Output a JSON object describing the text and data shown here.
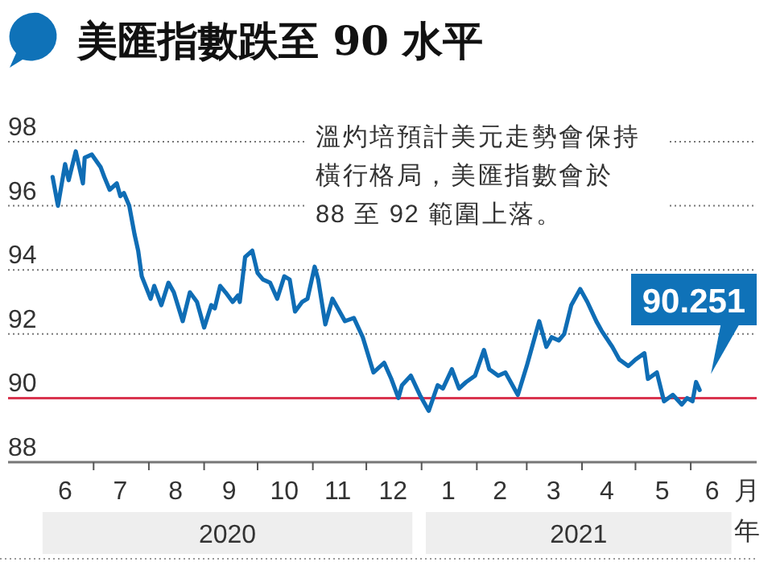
{
  "chart_data": {
    "type": "line",
    "title": "美匯指數跌至 90 水平",
    "xlabel": "月年",
    "annotations": [
      "溫灼培預計美元走勢會保持橫行格局，美匯指數會於88 至 92 範圍上落。",
      {
        "text": "90.251",
        "x": "2021-06-06",
        "y": 90.251
      },
      "2020",
      "2021"
    ],
    "x": [
      "2020-06-08",
      "2020-06-11",
      "2020-06-15",
      "2020-06-17",
      "2020-06-21",
      "2020-06-25",
      "2020-06-26",
      "2020-06-30",
      "2020-07-05",
      "2020-07-07",
      "2020-07-10",
      "2020-07-14",
      "2020-07-16",
      "2020-07-18",
      "2020-07-21",
      "2020-07-24",
      "2020-07-26",
      "2020-07-28",
      "2020-08-02",
      "2020-08-04",
      "2020-08-08",
      "2020-08-12",
      "2020-08-15",
      "2020-08-20",
      "2020-08-24",
      "2020-08-28",
      "2020-09-01",
      "2020-09-05",
      "2020-09-07",
      "2020-09-10",
      "2020-09-13",
      "2020-09-17",
      "2020-09-20",
      "2020-09-21",
      "2020-09-24",
      "2020-09-28",
      "2020-10-01",
      "2020-10-04",
      "2020-10-08",
      "2020-10-12",
      "2020-10-16",
      "2020-10-19",
      "2020-10-22",
      "2020-10-26",
      "2020-10-29",
      "2020-11-02",
      "2020-11-04",
      "2020-11-08",
      "2020-11-12",
      "2020-11-19",
      "2020-11-24",
      "2020-11-29",
      "2020-12-05",
      "2020-12-11",
      "2020-12-15",
      "2020-12-19",
      "2020-12-21",
      "2020-12-26",
      "2020-12-31",
      "2021-01-05",
      "2021-01-10",
      "2021-01-13",
      "2021-01-18",
      "2021-01-22",
      "2021-01-26",
      "2021-01-31",
      "2021-02-05",
      "2021-02-08",
      "2021-02-13",
      "2021-02-17",
      "2021-02-24",
      "2021-03-01",
      "2021-03-04",
      "2021-03-08",
      "2021-03-12",
      "2021-03-15",
      "2021-03-19",
      "2021-03-22",
      "2021-03-26",
      "2021-03-31",
      "2021-04-04",
      "2021-04-09",
      "2021-04-12",
      "2021-04-18",
      "2021-04-22",
      "2021-04-27",
      "2021-05-01",
      "2021-05-06",
      "2021-05-08",
      "2021-05-13",
      "2021-05-17",
      "2021-05-22",
      "2021-05-27",
      "2021-05-30",
      "2021-06-02",
      "2021-06-04",
      "2021-06-06"
    ],
    "values": [
      96.9,
      96.0,
      97.3,
      96.8,
      97.7,
      96.7,
      97.5,
      97.6,
      97.2,
      96.9,
      96.5,
      96.7,
      96.3,
      96.4,
      96.0,
      95.1,
      94.6,
      93.8,
      93.1,
      93.5,
      92.9,
      93.6,
      93.3,
      92.4,
      93.3,
      93.0,
      92.2,
      92.9,
      92.8,
      93.5,
      93.3,
      93.0,
      93.2,
      93.0,
      94.4,
      94.6,
      93.9,
      93.7,
      93.6,
      93.1,
      93.8,
      93.7,
      92.7,
      93.0,
      93.1,
      94.1,
      93.7,
      92.3,
      93.1,
      92.4,
      92.5,
      91.9,
      90.8,
      91.1,
      90.6,
      90.0,
      90.4,
      90.7,
      90.1,
      89.6,
      90.4,
      90.3,
      90.9,
      90.3,
      90.5,
      90.7,
      91.5,
      90.9,
      90.7,
      90.8,
      90.1,
      91.0,
      91.6,
      92.4,
      91.6,
      91.9,
      91.8,
      92.0,
      92.9,
      93.4,
      93.0,
      92.4,
      92.1,
      91.6,
      91.2,
      91.0,
      91.2,
      91.4,
      90.6,
      90.8,
      89.9,
      90.1,
      89.8,
      90.0,
      89.9,
      90.5,
      90.251
    ],
    "color": "#0f6db5",
    "xlim": [
      "2020-05-14",
      "2021-07-08"
    ],
    "ylim": [
      88,
      98
    ],
    "yticks": [
      88,
      90,
      92,
      94,
      96,
      98
    ],
    "xticks": [
      {
        "value": "2020-06-15",
        "label": "6"
      },
      {
        "value": "2020-07-01",
        "label": null
      },
      {
        "value": "2020-07-16",
        "label": "7"
      },
      {
        "value": "2020-08-01",
        "label": null
      },
      {
        "value": "2020-08-16",
        "label": "8"
      },
      {
        "value": "2020-09-01",
        "label": null
      },
      {
        "value": "2020-09-15",
        "label": "9"
      },
      {
        "value": "2020-10-01",
        "label": null
      },
      {
        "value": "2020-10-16",
        "label": "10"
      },
      {
        "value": "2020-11-01",
        "label": null
      },
      {
        "value": "2020-11-15",
        "label": "11"
      },
      {
        "value": "2020-12-01",
        "label": null
      },
      {
        "value": "2020-12-16",
        "label": "12"
      },
      {
        "value": "2021-01-01",
        "label": null
      },
      {
        "value": "2021-01-16",
        "label": "1"
      },
      {
        "value": "2021-02-01",
        "label": null
      },
      {
        "value": "2021-02-14",
        "label": "2"
      },
      {
        "value": "2021-03-01",
        "label": null
      },
      {
        "value": "2021-03-16",
        "label": "3"
      },
      {
        "value": "2021-04-01",
        "label": null
      },
      {
        "value": "2021-04-15",
        "label": "4"
      },
      {
        "value": "2021-05-01",
        "label": null
      },
      {
        "value": "2021-05-16",
        "label": "5"
      },
      {
        "value": "2021-06-01",
        "label": null
      },
      {
        "value": "2021-06-13",
        "label": "6"
      }
    ],
    "grid": "y",
    "ref_lines": [
      {
        "axis": "y",
        "value": 90,
        "color": "#d9344f"
      }
    ]
  }
}
